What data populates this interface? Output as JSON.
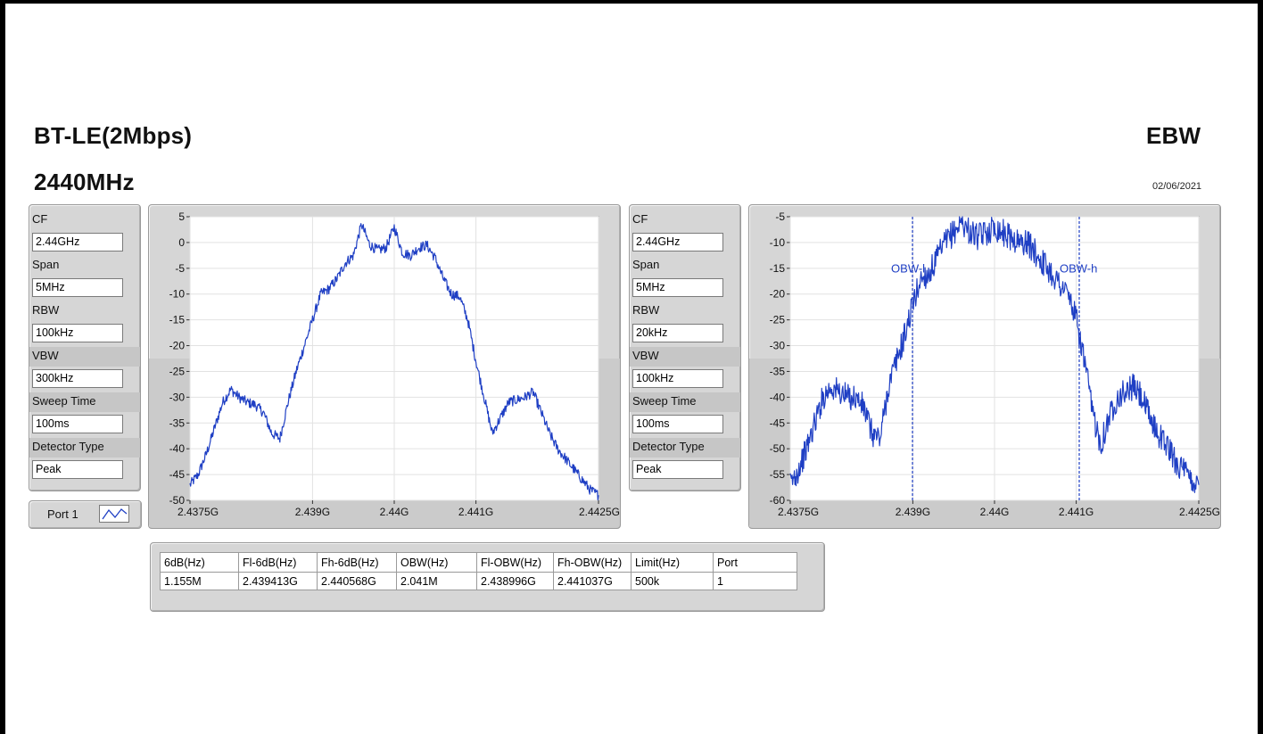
{
  "header": {
    "mode": "BT-LE(2Mbps)",
    "frequency": "2440MHz",
    "measurement": "EBW",
    "date": "02/06/2021"
  },
  "left_params": [
    {
      "label": "CF",
      "value": "2.44GHz"
    },
    {
      "label": "Span",
      "value": "5MHz"
    },
    {
      "label": "RBW",
      "value": "100kHz"
    },
    {
      "label": "VBW",
      "value": "300kHz"
    },
    {
      "label": "Sweep Time",
      "value": "100ms"
    },
    {
      "label": "Detector Type",
      "value": "Peak"
    }
  ],
  "right_params": [
    {
      "label": "CF",
      "value": "2.44GHz"
    },
    {
      "label": "Span",
      "value": "5MHz"
    },
    {
      "label": "RBW",
      "value": "20kHz"
    },
    {
      "label": "VBW",
      "value": "100kHz"
    },
    {
      "label": "Sweep Time",
      "value": "100ms"
    },
    {
      "label": "Detector Type",
      "value": "Peak"
    }
  ],
  "port_selector": {
    "label": "Port 1",
    "icon": "waveform-icon"
  },
  "results_table": {
    "headers": [
      "6dB(Hz)",
      "Fl-6dB(Hz)",
      "Fh-6dB(Hz)",
      "OBW(Hz)",
      "Fl-OBW(Hz)",
      "Fh-OBW(Hz)",
      "Limit(Hz)",
      "Port"
    ],
    "rows": [
      [
        "1.155M",
        "2.439413G",
        "2.440568G",
        "2.041M",
        "2.438996G",
        "2.441037G",
        "500k",
        "1"
      ]
    ]
  },
  "colors": {
    "trace": "#1f3fc4",
    "marker": "#1f3fc4",
    "panel": "#d6d6d6",
    "grid": "#e2e2e2"
  },
  "chart_data": [
    {
      "type": "line",
      "x_tick_labels": [
        "2.4375G",
        "2.439G",
        "2.44G",
        "2.441G",
        "2.4425G"
      ],
      "x_ticks": [
        2.4375,
        2.439,
        2.44,
        2.441,
        2.4425
      ],
      "y_ticks": [
        5,
        0,
        -5,
        -10,
        -15,
        -20,
        -25,
        -30,
        -35,
        -40,
        -45,
        -50
      ],
      "xlim": [
        2.4375,
        2.4425
      ],
      "ylim": [
        -50,
        5
      ],
      "grid": true,
      "series": [
        {
          "x": [
            2.4375,
            2.4376,
            2.4377,
            2.4378,
            2.4379,
            2.438,
            2.4381,
            2.4382,
            2.4383,
            2.4384,
            2.4385,
            2.4386,
            2.4387,
            2.4388,
            2.4389,
            2.439,
            2.4391,
            2.4392,
            2.4393,
            2.4394,
            2.4395,
            2.4396,
            2.4397,
            2.4398,
            2.4399,
            2.44,
            2.4401,
            2.4402,
            2.4403,
            2.4404,
            2.4405,
            2.4406,
            2.4407,
            2.4408,
            2.4409,
            2.441,
            2.4411,
            2.4412,
            2.4413,
            2.4414,
            2.4415,
            2.4416,
            2.4417,
            2.4418,
            2.4419,
            2.442,
            2.4421,
            2.4422,
            2.4423,
            2.4424,
            2.4425
          ],
          "y": [
            -47,
            -45,
            -41,
            -36,
            -31,
            -28.5,
            -30,
            -31,
            -31.5,
            -33,
            -37,
            -38,
            -31,
            -25,
            -20,
            -15,
            -10,
            -9,
            -7,
            -4,
            -2.5,
            3.5,
            -0.5,
            -1.5,
            -1,
            3,
            -2,
            -2.5,
            -1,
            -0.5,
            -3,
            -7,
            -10,
            -10.5,
            -15,
            -23,
            -30,
            -37,
            -34,
            -31,
            -30.5,
            -30,
            -29,
            -33,
            -37,
            -40,
            -42,
            -44,
            -46,
            -48,
            -49
          ]
        }
      ]
    },
    {
      "type": "line",
      "x_tick_labels": [
        "2.4375G",
        "2.439G",
        "2.44G",
        "2.441G",
        "2.4425G"
      ],
      "x_ticks": [
        2.4375,
        2.439,
        2.44,
        2.441,
        2.4425
      ],
      "y_ticks": [
        -5,
        -10,
        -15,
        -20,
        -25,
        -30,
        -35,
        -40,
        -45,
        -50,
        -55,
        -60
      ],
      "xlim": [
        2.4375,
        2.4425
      ],
      "ylim": [
        -60,
        -5
      ],
      "grid": true,
      "markers": [
        {
          "label": "OBW-l",
          "x": 2.438996
        },
        {
          "label": "OBW-h",
          "x": 2.441037
        }
      ],
      "series": [
        {
          "x": [
            2.4375,
            2.4376,
            2.4377,
            2.4378,
            2.4379,
            2.438,
            2.4381,
            2.4382,
            2.4383,
            2.4384,
            2.4385,
            2.4386,
            2.4387,
            2.4388,
            2.4389,
            2.439,
            2.4391,
            2.4392,
            2.4393,
            2.4394,
            2.4395,
            2.4396,
            2.4397,
            2.4398,
            2.4399,
            2.44,
            2.4401,
            2.4402,
            2.4403,
            2.4404,
            2.4405,
            2.4406,
            2.4407,
            2.4408,
            2.4409,
            2.441,
            2.4411,
            2.4412,
            2.4413,
            2.4414,
            2.4415,
            2.4416,
            2.4417,
            2.4418,
            2.4419,
            2.442,
            2.4421,
            2.4422,
            2.4423,
            2.4424,
            2.4425
          ],
          "y": [
            -57,
            -54,
            -50,
            -45,
            -40,
            -38,
            -39,
            -40,
            -40,
            -42,
            -47,
            -48,
            -38,
            -33,
            -28,
            -22,
            -17,
            -16,
            -13,
            -10,
            -8,
            -6,
            -8,
            -9,
            -8,
            -7,
            -8,
            -9,
            -10,
            -10,
            -12,
            -14,
            -16,
            -18,
            -20,
            -25,
            -33,
            -43,
            -49,
            -44,
            -40,
            -39,
            -38,
            -40,
            -44,
            -47,
            -49,
            -52,
            -54,
            -56,
            -57
          ]
        }
      ]
    }
  ]
}
